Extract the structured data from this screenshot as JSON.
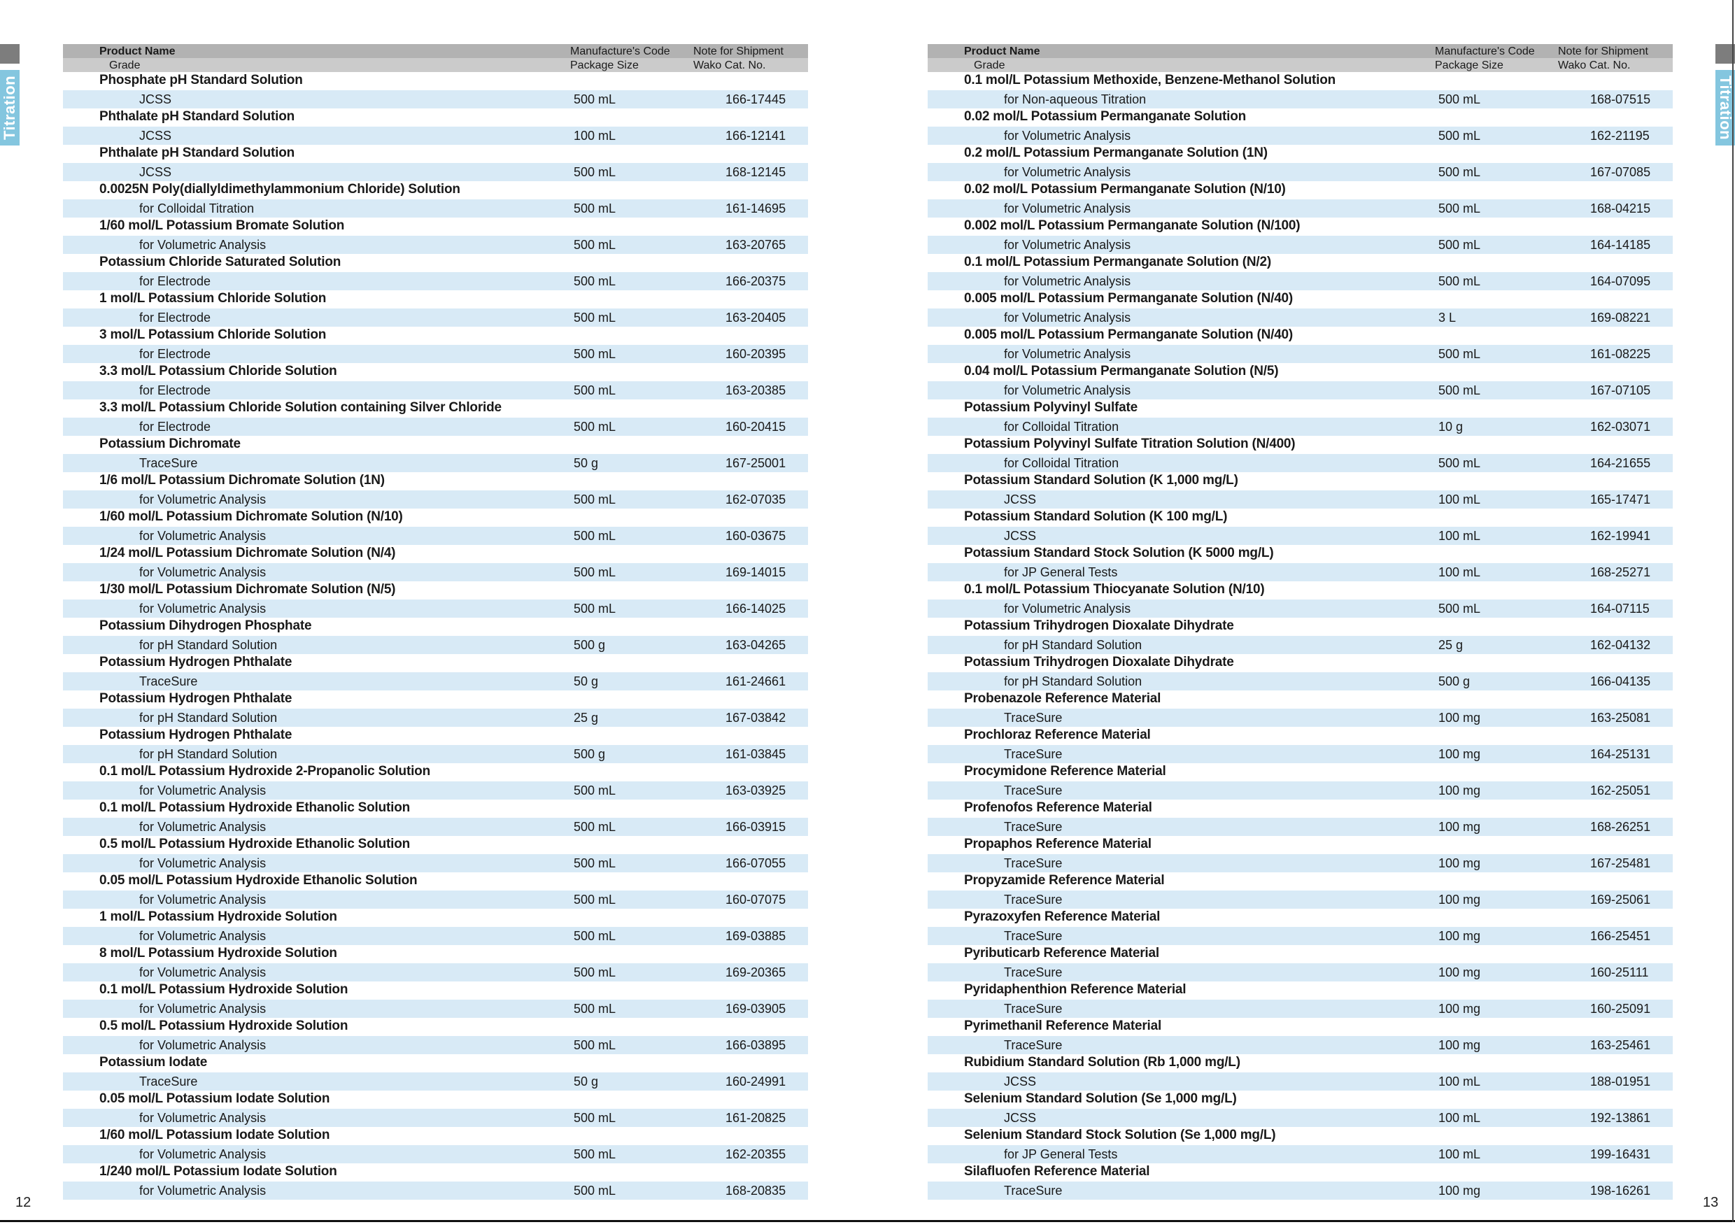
{
  "page": {
    "left_number": "12",
    "right_number": "13",
    "tab_label": "Titration"
  },
  "colors": {
    "stripe": "#d8eaf6",
    "tab_blue": "#84c6df",
    "header_top": "#b2b2b2",
    "header_bottom": "#cbcbcb",
    "tab_marker_gray": "#7d7d7d"
  },
  "table_header": {
    "col1_line1": "Product Name",
    "col1_line2": "Grade",
    "col2_line1": "Manufacture's Code",
    "col2_line2": "Package Size",
    "col3_line1": "Note for Shipment",
    "col3_line2": "Wako Cat. No."
  },
  "left_rows": [
    {
      "name": "Phosphate pH Standard Solution",
      "grade": "JCSS",
      "size": "500 mL",
      "cat": "166-17445"
    },
    {
      "name": "Phthalate pH Standard Solution",
      "grade": "JCSS",
      "size": "100 mL",
      "cat": "166-12141"
    },
    {
      "name": "Phthalate pH Standard Solution",
      "grade": "JCSS",
      "size": "500 mL",
      "cat": "168-12145"
    },
    {
      "name": "0.0025N Poly(diallyldimethylammonium Chloride) Solution",
      "grade": "for Colloidal Titration",
      "size": "500 mL",
      "cat": "161-14695"
    },
    {
      "name": "1/60 mol/L Potassium Bromate Solution",
      "grade": "for Volumetric Analysis",
      "size": "500 mL",
      "cat": "163-20765"
    },
    {
      "name": "Potassium Chloride Saturated Solution",
      "grade": "for Electrode",
      "size": "500 mL",
      "cat": "166-20375"
    },
    {
      "name": "1 mol/L Potassium Chloride Solution",
      "grade": "for Electrode",
      "size": "500 mL",
      "cat": "163-20405"
    },
    {
      "name": "3 mol/L Potassium Chloride Solution",
      "grade": "for Electrode",
      "size": "500 mL",
      "cat": "160-20395"
    },
    {
      "name": "3.3 mol/L Potassium Chloride Solution",
      "grade": "for Electrode",
      "size": "500 mL",
      "cat": "163-20385"
    },
    {
      "name": "3.3 mol/L Potassium Chloride Solution containing Silver Chloride",
      "grade": "for Electrode",
      "size": "500 mL",
      "cat": "160-20415"
    },
    {
      "name": "Potassium Dichromate",
      "grade": "TraceSure",
      "size": "50 g",
      "cat": "167-25001"
    },
    {
      "name": "1/6 mol/L Potassium Dichromate Solution (1N)",
      "grade": "for Volumetric Analysis",
      "size": "500 mL",
      "cat": "162-07035"
    },
    {
      "name": "1/60 mol/L Potassium Dichromate Solution (N/10)",
      "grade": "for Volumetric Analysis",
      "size": "500 mL",
      "cat": "160-03675"
    },
    {
      "name": "1/24 mol/L Potassium Dichromate Solution (N/4)",
      "grade": "for Volumetric Analysis",
      "size": "500 mL",
      "cat": "169-14015"
    },
    {
      "name": "1/30 mol/L Potassium Dichromate Solution (N/5)",
      "grade": "for Volumetric Analysis",
      "size": "500 mL",
      "cat": "166-14025"
    },
    {
      "name": "Potassium Dihydrogen Phosphate",
      "grade": "for pH Standard Solution",
      "size": "500 g",
      "cat": "163-04265"
    },
    {
      "name": "Potassium Hydrogen Phthalate",
      "grade": "TraceSure",
      "size": "50 g",
      "cat": "161-24661"
    },
    {
      "name": "Potassium Hydrogen Phthalate",
      "grade": "for pH Standard Solution",
      "size": "25 g",
      "cat": "167-03842"
    },
    {
      "name": "Potassium Hydrogen Phthalate",
      "grade": "for pH Standard Solution",
      "size": "500 g",
      "cat": "161-03845"
    },
    {
      "name": "0.1 mol/L Potassium Hydroxide 2-Propanolic Solution",
      "grade": "for Volumetric Analysis",
      "size": "500 mL",
      "cat": "163-03925"
    },
    {
      "name": "0.1 mol/L Potassium Hydroxide Ethanolic Solution",
      "grade": "for Volumetric Analysis",
      "size": "500 mL",
      "cat": "166-03915"
    },
    {
      "name": "0.5 mol/L Potassium Hydroxide Ethanolic Solution",
      "grade": "for Volumetric Analysis",
      "size": "500 mL",
      "cat": "166-07055"
    },
    {
      "name": "0.05 mol/L Potassium Hydroxide Ethanolic Solution",
      "grade": "for Volumetric Analysis",
      "size": "500 mL",
      "cat": "160-07075"
    },
    {
      "name": "1 mol/L Potassium Hydroxide Solution",
      "grade": "for Volumetric Analysis",
      "size": "500 mL",
      "cat": "169-03885"
    },
    {
      "name": "8 mol/L Potassium Hydroxide Solution",
      "grade": "for Volumetric Analysis",
      "size": "500 mL",
      "cat": "169-20365"
    },
    {
      "name": "0.1 mol/L Potassium Hydroxide Solution",
      "grade": "for Volumetric Analysis",
      "size": "500 mL",
      "cat": "169-03905"
    },
    {
      "name": "0.5 mol/L Potassium Hydroxide Solution",
      "grade": "for Volumetric Analysis",
      "size": "500 mL",
      "cat": "166-03895"
    },
    {
      "name": "Potassium Iodate",
      "grade": "TraceSure",
      "size": "50 g",
      "cat": "160-24991"
    },
    {
      "name": "0.05 mol/L Potassium Iodate Solution",
      "grade": "for Volumetric Analysis",
      "size": "500 mL",
      "cat": "161-20825"
    },
    {
      "name": "1/60 mol/L Potassium Iodate Solution",
      "grade": "for Volumetric Analysis",
      "size": "500 mL",
      "cat": "162-20355"
    },
    {
      "name": "1/240 mol/L Potassium Iodate Solution",
      "grade": "for Volumetric Analysis",
      "size": "500 mL",
      "cat": "168-20835"
    }
  ],
  "right_rows": [
    {
      "name": "0.1 mol/L Potassium Methoxide, Benzene-Methanol Solution",
      "grade": "for Non-aqueous Titration",
      "size": "500 mL",
      "cat": "168-07515"
    },
    {
      "name": "0.02 mol/L Potassium Permanganate Solution",
      "grade": "for Volumetric Analysis",
      "size": "500 mL",
      "cat": "162-21195"
    },
    {
      "name": "0.2 mol/L Potassium Permanganate Solution (1N)",
      "grade": "for Volumetric Analysis",
      "size": "500 mL",
      "cat": "167-07085"
    },
    {
      "name": "0.02 mol/L Potassium Permanganate Solution (N/10)",
      "grade": "for Volumetric Analysis",
      "size": "500 mL",
      "cat": "168-04215"
    },
    {
      "name": "0.002 mol/L Potassium Permanganate Solution (N/100)",
      "grade": "for Volumetric Analysis",
      "size": "500 mL",
      "cat": "164-14185"
    },
    {
      "name": "0.1 mol/L Potassium Permanganate Solution (N/2)",
      "grade": "for Volumetric Analysis",
      "size": "500 mL",
      "cat": "164-07095"
    },
    {
      "name": "0.005 mol/L Potassium Permanganate Solution (N/40)",
      "grade": "for Volumetric Analysis",
      "size": "3 L",
      "cat": "169-08221"
    },
    {
      "name": "0.005 mol/L Potassium Permanganate Solution (N/40)",
      "grade": "for Volumetric Analysis",
      "size": "500 mL",
      "cat": "161-08225"
    },
    {
      "name": "0.04 mol/L Potassium Permanganate Solution (N/5)",
      "grade": "for Volumetric Analysis",
      "size": "500 mL",
      "cat": "167-07105"
    },
    {
      "name": "Potassium Polyvinyl Sulfate",
      "grade": "for Colloidal Titration",
      "size": "10 g",
      "cat": "162-03071"
    },
    {
      "name": "Potassium Polyvinyl Sulfate Titration Solution (N/400)",
      "grade": "for Colloidal Titration",
      "size": "500 mL",
      "cat": "164-21655"
    },
    {
      "name": "Potassium Standard Solution (K 1,000 mg/L)",
      "grade": "JCSS",
      "size": "100 mL",
      "cat": "165-17471"
    },
    {
      "name": "Potassium Standard Solution (K 100 mg/L)",
      "grade": "JCSS",
      "size": "100 mL",
      "cat": "162-19941"
    },
    {
      "name": "Potassium Standard Stock Solution (K 5000 mg/L)",
      "grade": "for JP General Tests",
      "size": "100 mL",
      "cat": "168-25271"
    },
    {
      "name": "0.1 mol/L Potassium Thiocyanate Solution (N/10)",
      "grade": "for Volumetric Analysis",
      "size": "500 mL",
      "cat": "164-07115"
    },
    {
      "name": "Potassium Trihydrogen Dioxalate Dihydrate",
      "grade": "for pH Standard Solution",
      "size": "25 g",
      "cat": "162-04132"
    },
    {
      "name": "Potassium Trihydrogen Dioxalate Dihydrate",
      "grade": "for pH Standard Solution",
      "size": "500 g",
      "cat": "166-04135"
    },
    {
      "name": "Probenazole Reference Material",
      "grade": "TraceSure",
      "size": "100 mg",
      "cat": "163-25081"
    },
    {
      "name": "Prochloraz Reference Material",
      "grade": "TraceSure",
      "size": "100 mg",
      "cat": "164-25131"
    },
    {
      "name": "Procymidone Reference Material",
      "grade": "TraceSure",
      "size": "100 mg",
      "cat": "162-25051"
    },
    {
      "name": "Profenofos Reference Material",
      "grade": "TraceSure",
      "size": "100 mg",
      "cat": "168-26251"
    },
    {
      "name": "Propaphos Reference Material",
      "grade": "TraceSure",
      "size": "100 mg",
      "cat": "167-25481"
    },
    {
      "name": "Propyzamide Reference Material",
      "grade": "TraceSure",
      "size": "100 mg",
      "cat": "169-25061"
    },
    {
      "name": "Pyrazoxyfen Reference Material",
      "grade": "TraceSure",
      "size": "100 mg",
      "cat": "166-25451"
    },
    {
      "name": "Pyributicarb Reference Material",
      "grade": "TraceSure",
      "size": "100 mg",
      "cat": "160-25111"
    },
    {
      "name": "Pyridaphenthion Reference Material",
      "grade": "TraceSure",
      "size": "100 mg",
      "cat": "160-25091"
    },
    {
      "name": "Pyrimethanil Reference Material",
      "grade": "TraceSure",
      "size": "100 mg",
      "cat": "163-25461"
    },
    {
      "name": "Rubidium Standard Solution (Rb 1,000 mg/L)",
      "grade": "JCSS",
      "size": "100 mL",
      "cat": "188-01951"
    },
    {
      "name": "Selenium Standard Solution (Se 1,000 mg/L)",
      "grade": "JCSS",
      "size": "100 mL",
      "cat": "192-13861"
    },
    {
      "name": "Selenium Standard Stock Solution (Se 1,000 mg/L)",
      "grade": "for JP General Tests",
      "size": "100 mL",
      "cat": "199-16431"
    },
    {
      "name": "Silafluofen Reference Material",
      "grade": "TraceSure",
      "size": "100 mg",
      "cat": "198-16261"
    }
  ]
}
